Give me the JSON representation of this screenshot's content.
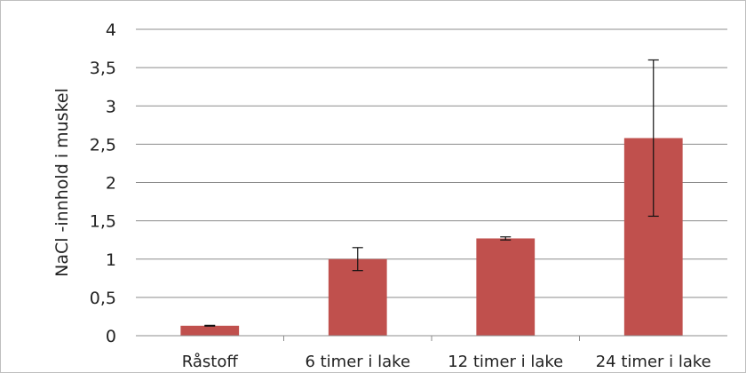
{
  "chart_data": {
    "type": "bar",
    "title": "",
    "xlabel": "",
    "ylabel": "NaCl -innhold i muskel",
    "categories": [
      "Råstoff",
      "6 timer i lake",
      "12 timer i lake",
      "24 timer i lake"
    ],
    "values": [
      0.13,
      1.0,
      1.27,
      2.58
    ],
    "error": [
      0.005,
      0.15,
      0.02,
      1.02
    ],
    "ylim": [
      0,
      4
    ],
    "yticks": [
      0,
      0.5,
      1,
      1.5,
      2,
      2.5,
      3,
      3.5,
      4
    ],
    "ytick_labels": [
      "0",
      "0,5",
      "1",
      "1,5",
      "2",
      "2,5",
      "3",
      "3,5",
      "4"
    ],
    "grid": true,
    "legend": "none",
    "bar_color": "#c0504d",
    "grid_color": "#8c8c8c"
  }
}
